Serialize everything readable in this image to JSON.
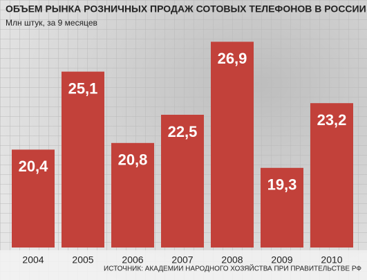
{
  "chart_data": {
    "type": "bar",
    "title": "ОБЪЕМ РЫНКА РОЗНИЧНЫХ ПРОДАЖ СОТОВЫХ ТЕЛЕФОНОВ В РОССИИ",
    "subtitle": "Млн штук, за 9 месяцев",
    "source": "ИСТОЧНИК: АКАДЕМИИ НАРОДНОГО ХОЗЯЙСТВА ПРИ ПРАВИТЕЛЬСТВЕ РФ",
    "categories": [
      "2004",
      "2005",
      "2006",
      "2007",
      "2008",
      "2009",
      "2010"
    ],
    "values": [
      20.4,
      25.1,
      20.8,
      22.5,
      26.9,
      19.3,
      23.2
    ],
    "value_labels": [
      "20,4",
      "25,1",
      "20,8",
      "22,5",
      "26,9",
      "19,3",
      "23,2"
    ],
    "color": "#c2413a",
    "ylim": [
      14.5,
      27.75
    ]
  }
}
